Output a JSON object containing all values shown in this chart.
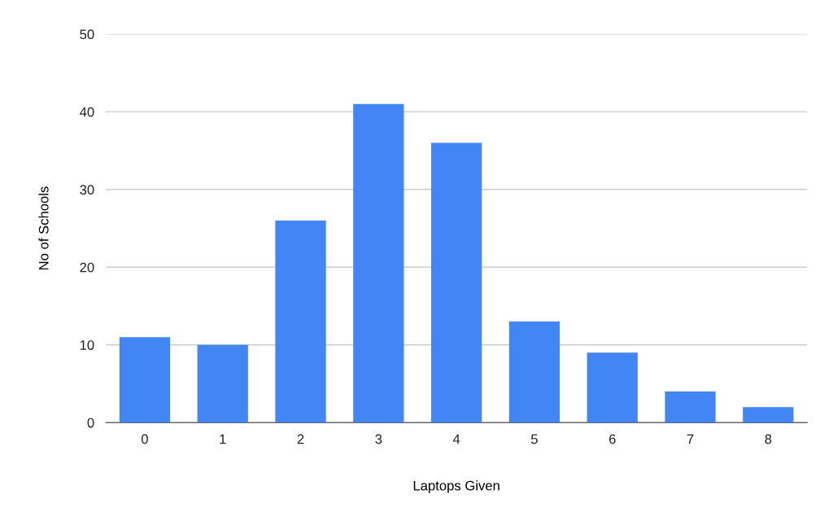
{
  "chart_data": {
    "type": "bar",
    "xlabel": "Laptops Given",
    "ylabel": "No of Schools",
    "categories": [
      "0",
      "1",
      "2",
      "3",
      "4",
      "5",
      "6",
      "7",
      "8"
    ],
    "values": [
      11,
      10,
      26,
      41,
      36,
      13,
      9,
      4,
      2
    ],
    "color": "#4285f4",
    "ylim": [
      0,
      50
    ],
    "yticks": [
      0,
      10,
      20,
      30,
      40,
      50
    ],
    "grid": "y"
  }
}
